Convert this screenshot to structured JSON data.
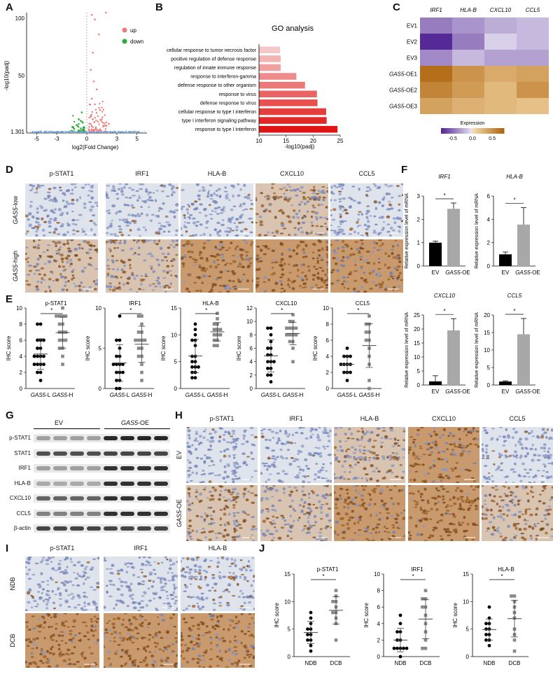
{
  "panel_letters": {
    "A": "A",
    "B": "B",
    "C": "C",
    "D": "D",
    "E": "E",
    "F": "F",
    "G": "G",
    "H": "H",
    "I": "I",
    "J": "J"
  },
  "colors": {
    "up": "#f07a7a",
    "down": "#2eaa3a",
    "ns": "#7aa7e0",
    "he": "#d11a1a",
    "brown": "#b0702a",
    "hema": "#c9d6ea",
    "bar_ev": "#000000",
    "bar_oe": "#a8a8a8"
  },
  "volcano": {
    "xlabel": "log2(Fold Change)",
    "ylabel": "-log10(padj)",
    "legend": [
      {
        "label": "up",
        "color": "#f07a7a"
      },
      {
        "label": "down",
        "color": "#2eaa3a"
      }
    ],
    "xticks": [
      "-5",
      "-3",
      "0",
      "3",
      "5"
    ],
    "yticks": [
      "1.301",
      "50",
      "100"
    ]
  },
  "go": {
    "title": "GO analysis",
    "xlabel": "-log10(padj)",
    "xticks": [
      "10",
      "15",
      "20",
      "25"
    ]
  },
  "heatmap": {
    "cols": [
      "IRF1",
      "HLA-B",
      "CXCL10",
      "CCL5"
    ],
    "rows": [
      {
        "prefix": "",
        "ital": "",
        "suffix": "EV1"
      },
      {
        "prefix": "",
        "ital": "",
        "suffix": "EV2"
      },
      {
        "prefix": "",
        "ital": "",
        "suffix": "EV3"
      },
      {
        "prefix": "",
        "ital": "GAS5",
        "suffix": "-OE1"
      },
      {
        "prefix": "",
        "ital": "GAS5",
        "suffix": "-OE2"
      },
      {
        "prefix": "",
        "ital": "GAS5",
        "suffix": "-OE3"
      }
    ],
    "legend_title": "Expression",
    "legend_ticks": [
      "-0.5",
      "0.0",
      "0.5"
    ]
  },
  "ihc_D": {
    "cols": [
      "p-STAT1",
      "IRF1",
      "HLA-B",
      "CXCL10",
      "CCL5"
    ],
    "rows": [
      {
        "ital": "GAS5",
        "suffix": "-low"
      },
      {
        "ital": "GAS5",
        "suffix": "-high"
      }
    ]
  },
  "scatter_E": {
    "ylabel": "IHC score",
    "xcats": [
      {
        "ital": "GAS5",
        "suffix": "-L"
      },
      {
        "ital": "GAS5",
        "suffix": "-H"
      }
    ],
    "sig": "*"
  },
  "bars_F": {
    "ylabel": "Relative expression level of mRNA",
    "cats": [
      "EV",
      "GAS5-OE"
    ],
    "sig": "*"
  },
  "blot_G": {
    "groups": [
      "EV",
      "GAS5-OE"
    ],
    "rows": [
      "p-STAT1",
      "STAT1",
      "IRF1",
      "HLA-B",
      "CXCL10",
      "CCL5",
      "β-actin"
    ]
  },
  "ihc_H": {
    "cols": [
      "p-STAT1",
      "IRF1",
      "HLA-B",
      "CXCL10",
      "CCL5"
    ],
    "rows": [
      {
        "ital": "",
        "suffix": "EV"
      },
      {
        "ital": "GAS5",
        "suffix": "-OE"
      }
    ]
  },
  "ihc_I": {
    "cols": [
      "p-STAT1",
      "IRF1",
      "HLA-B"
    ],
    "rows": [
      "NDB",
      "DCB"
    ]
  },
  "scatter_J": {
    "ylabel": "IHC score",
    "cats": [
      "NDB",
      "DCB"
    ],
    "sig": "*"
  },
  "chart_data": [
    {
      "type": "scatter",
      "title": "",
      "xlabel": "log2(Fold Change)",
      "ylabel": "-log10(padj)",
      "xlim": [
        -6,
        6
      ],
      "ylim": [
        0,
        105
      ],
      "series": [
        {
          "name": "up",
          "points": [
            [
              0.5,
              103
            ],
            [
              0.8,
              99
            ],
            [
              1.2,
              86
            ],
            [
              1.9,
              105
            ],
            [
              0.6,
              70
            ],
            [
              0.4,
              55
            ],
            [
              0.7,
              45
            ],
            [
              1.0,
              38
            ],
            [
              0.5,
              30
            ],
            [
              0.8,
              25
            ],
            [
              1.3,
              20
            ],
            [
              0.4,
              15
            ],
            [
              0.6,
              12
            ],
            [
              1.1,
              10
            ],
            [
              1.6,
              9
            ],
            [
              2.2,
              8
            ],
            [
              0.5,
              6
            ],
            [
              0.9,
              5
            ]
          ]
        },
        {
          "name": "down",
          "points": [
            [
              -0.5,
              18
            ],
            [
              -0.8,
              12
            ],
            [
              -0.4,
              9
            ],
            [
              -1.0,
              7
            ],
            [
              -1.4,
              5
            ],
            [
              -0.6,
              4
            ],
            [
              -0.3,
              3
            ]
          ]
        }
      ]
    },
    {
      "type": "bar",
      "title": "GO analysis",
      "xlabel": "-log10(padj)",
      "xlim": [
        10,
        25
      ],
      "categories": [
        "cellular response to tumor necrosis factor",
        "positive regulation of defense response",
        "regulation of innate immune response",
        "response to interferon-gamma",
        "defense response to other organism",
        "response to virus",
        "defense response to virus",
        "cellular response to type I interferon",
        "type I interferon signaling pathway",
        "response to type I interferon"
      ],
      "values": [
        13.9,
        14.0,
        14.0,
        16.9,
        18.5,
        20.7,
        20.8,
        22.4,
        22.5,
        24.5
      ]
    },
    {
      "type": "heatmap",
      "title": "",
      "x": [
        "IRF1",
        "HLA-B",
        "CXCL10",
        "CCL5"
      ],
      "y": [
        "EV1",
        "EV2",
        "EV3",
        "GAS5-OE1",
        "GAS5-OE2",
        "GAS5-OE3"
      ],
      "values": [
        [
          -0.45,
          -0.35,
          -0.25,
          -0.2
        ],
        [
          -0.8,
          -0.45,
          -0.1,
          -0.2
        ],
        [
          -0.4,
          -0.2,
          -0.3,
          -0.3
        ],
        [
          0.75,
          0.5,
          0.35,
          0.4
        ],
        [
          0.6,
          0.45,
          0.25,
          0.5
        ],
        [
          0.4,
          0.3,
          0.25,
          0.2
        ]
      ],
      "zlim": [
        -0.8,
        0.8
      ]
    },
    {
      "type": "scatter",
      "title": "p-STAT1",
      "ylabel": "IHC score",
      "ylim": [
        0,
        10
      ],
      "yticks": [
        0,
        2,
        4,
        6,
        8,
        10
      ],
      "series": [
        {
          "name": "GAS5-L",
          "values": [
            1,
            2,
            2,
            3,
            3,
            3,
            3,
            4,
            4,
            4,
            4,
            5,
            5,
            6,
            6,
            6,
            8,
            8
          ]
        },
        {
          "name": "GAS5-H",
          "values": [
            3,
            4,
            5,
            5,
            6,
            6,
            6,
            7,
            7,
            7,
            8,
            8,
            9,
            9,
            9,
            9,
            10
          ]
        }
      ]
    },
    {
      "type": "scatter",
      "title": "IRF1",
      "ylabel": "IHC score",
      "ylim": [
        0,
        10
      ],
      "yticks": [
        0,
        5,
        10
      ],
      "series": [
        {
          "name": "GAS5-L",
          "values": [
            0,
            0,
            1,
            1,
            2,
            2,
            2,
            3,
            3,
            3,
            3,
            4,
            4,
            5,
            6,
            6,
            9
          ]
        },
        {
          "name": "GAS5-H",
          "values": [
            1,
            2,
            3,
            4,
            4,
            5,
            5,
            6,
            6,
            6,
            6,
            7,
            7,
            8,
            9,
            9
          ]
        }
      ]
    },
    {
      "type": "scatter",
      "title": "HLA-B",
      "ylabel": "IHC score",
      "ylim": [
        0,
        15
      ],
      "yticks": [
        0,
        5,
        10,
        15
      ],
      "series": [
        {
          "name": "GAS5-L",
          "values": [
            2,
            2,
            3,
            3,
            4,
            4,
            4,
            5,
            5,
            6,
            6,
            8,
            9,
            9,
            10,
            11,
            12
          ]
        },
        {
          "name": "GAS5-H",
          "values": [
            8,
            8,
            9,
            9,
            10,
            10,
            10,
            11,
            11,
            11,
            12,
            12,
            13,
            14
          ]
        }
      ]
    },
    {
      "type": "scatter",
      "title": "CXCL10",
      "ylabel": "IHC score",
      "ylim": [
        0,
        12
      ],
      "yticks": [
        0,
        2,
        4,
        6,
        8,
        10,
        12
      ],
      "series": [
        {
          "name": "GAS5-L",
          "values": [
            1,
            2,
            2,
            3,
            3,
            4,
            4,
            4,
            5,
            5,
            6,
            6,
            7,
            8,
            9,
            9
          ]
        },
        {
          "name": "GAS5-H",
          "values": [
            4,
            6,
            7,
            7,
            8,
            8,
            8,
            8,
            9,
            9,
            9,
            9,
            10,
            10,
            11
          ]
        }
      ]
    },
    {
      "type": "scatter",
      "title": "CCL5",
      "ylabel": "IHC score",
      "ylim": [
        0,
        10
      ],
      "yticks": [
        0,
        2,
        4,
        6,
        8,
        10
      ],
      "series": [
        {
          "name": "GAS5-L",
          "values": [
            1,
            2,
            2,
            2,
            3,
            3,
            3,
            3,
            4,
            4,
            4,
            5
          ]
        },
        {
          "name": "GAS5-H",
          "values": [
            0,
            1,
            3,
            4,
            5,
            6,
            6,
            7,
            7,
            8,
            8,
            9
          ]
        }
      ]
    },
    {
      "type": "bar",
      "title": "IRF1",
      "ylabel": "Relative expression level of mRNA",
      "categories": [
        "EV",
        "GAS5-OE"
      ],
      "values": [
        1.0,
        2.45
      ],
      "errors": [
        0.07,
        0.25
      ],
      "ylim": [
        0,
        3
      ]
    },
    {
      "type": "bar",
      "title": "HLA-B",
      "ylabel": "Relative expression level of mRNA",
      "categories": [
        "EV",
        "GAS5-OE"
      ],
      "values": [
        1.0,
        3.55
      ],
      "errors": [
        0.2,
        1.45
      ],
      "ylim": [
        0,
        6
      ]
    },
    {
      "type": "bar",
      "title": "CXCL10",
      "ylabel": "Relative expression level of mRNA",
      "categories": [
        "EV",
        "GAS5-OE"
      ],
      "values": [
        1.3,
        19.5
      ],
      "errors": [
        2.0,
        4.2
      ],
      "ylim": [
        0,
        25
      ]
    },
    {
      "type": "bar",
      "title": "CCL5",
      "ylabel": "Relative expression level of mRNA",
      "categories": [
        "EV",
        "GAS5-OE"
      ],
      "values": [
        1.0,
        14.5
      ],
      "errors": [
        0.2,
        4.5
      ],
      "ylim": [
        0,
        20
      ]
    },
    {
      "type": "scatter",
      "title": "p-STAT1",
      "ylabel": "IHC score",
      "ylim": [
        0,
        15
      ],
      "yticks": [
        0,
        5,
        10,
        15
      ],
      "series": [
        {
          "name": "NDB",
          "values": [
            1,
            2,
            3,
            3,
            4,
            4,
            5,
            5,
            6,
            7,
            8
          ]
        },
        {
          "name": "DCB",
          "values": [
            3,
            6,
            7,
            8,
            8,
            9,
            10,
            10,
            11,
            12
          ]
        }
      ]
    },
    {
      "type": "scatter",
      "title": "IRF1",
      "ylabel": "IHC score",
      "ylim": [
        0,
        10
      ],
      "yticks": [
        0,
        2,
        4,
        6,
        8,
        10
      ],
      "series": [
        {
          "name": "NDB",
          "values": [
            0,
            1,
            1,
            1,
            1,
            1,
            2,
            2,
            3,
            3,
            4,
            5
          ]
        },
        {
          "name": "DCB",
          "values": [
            1,
            1,
            2,
            3,
            4,
            5,
            6,
            6,
            7,
            7,
            8
          ]
        }
      ]
    },
    {
      "type": "scatter",
      "title": "HLA-B",
      "ylabel": "IHC score",
      "ylim": [
        0,
        15
      ],
      "yticks": [
        0,
        5,
        10,
        15
      ],
      "series": [
        {
          "name": "NDB",
          "values": [
            2,
            3,
            3,
            4,
            4,
            5,
            5,
            6,
            6,
            7,
            9
          ]
        },
        {
          "name": "DCB",
          "values": [
            1,
            3,
            4,
            5,
            7,
            8,
            9,
            10,
            11,
            11
          ]
        }
      ]
    }
  ]
}
